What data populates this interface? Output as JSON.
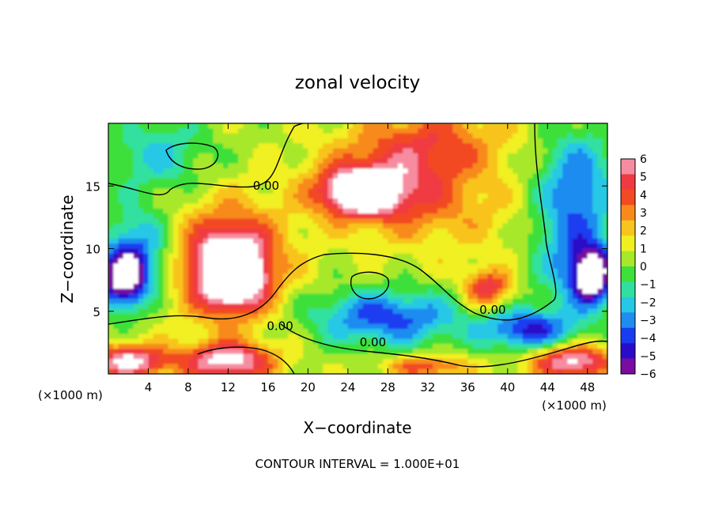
{
  "chart_data": {
    "type": "heatmap",
    "title": "zonal velocity",
    "xlabel": "X−coordinate",
    "ylabel": "Z−coordinate",
    "x_unit_label_left": "(×1000 m)",
    "x_unit_label_right": "(×1000 m)",
    "footer": "CONTOUR INTERVAL = 1.000E+01",
    "xlim": [
      0,
      50
    ],
    "ylim": [
      0,
      20
    ],
    "xticks": [
      4,
      8,
      12,
      16,
      20,
      24,
      28,
      32,
      36,
      40,
      44,
      48
    ],
    "yticks": [
      5,
      10,
      15
    ],
    "colorbar": {
      "min": -6,
      "max": 6,
      "ticks": [
        6,
        5,
        4,
        3,
        2,
        1,
        0,
        -1,
        -2,
        -3,
        -4,
        -5,
        -6
      ],
      "colors": [
        "#7a0ca0",
        "#2a0cc8",
        "#1a3cf0",
        "#1e8cf0",
        "#25c8e6",
        "#30e0a0",
        "#3ee03a",
        "#a8e82a",
        "#f0f020",
        "#f8c41e",
        "#f88a1c",
        "#f24a22",
        "#f03a42",
        "#f68ca0"
      ]
    },
    "contour_labels": [
      {
        "text": "0.00",
        "x": 15.8,
        "y": 14.7
      },
      {
        "text": "0.00",
        "x": 17.2,
        "y": 3.5
      },
      {
        "text": "0.00",
        "x": 26.5,
        "y": 2.2
      },
      {
        "text": "0.00",
        "x": 38.5,
        "y": 4.8
      }
    ],
    "features": [
      {
        "x": 12.5,
        "y": 8.0,
        "value": 7.0,
        "rx": 3.0,
        "ry": 2.6
      },
      {
        "x": 12.0,
        "y": 9.0,
        "value": 5.0,
        "rx": 5.5,
        "ry": 4.4
      },
      {
        "x": 25.0,
        "y": 14.5,
        "value": 5.5,
        "rx": 3.6,
        "ry": 1.7
      },
      {
        "x": 27.0,
        "y": 14.8,
        "value": 4.0,
        "rx": 6.5,
        "ry": 2.8
      },
      {
        "x": 32.0,
        "y": 18.5,
        "value": 3.2,
        "rx": 7.5,
        "ry": 2.8
      },
      {
        "x": 38.0,
        "y": 6.8,
        "value": 4.5,
        "rx": 2.3,
        "ry": 1.5
      },
      {
        "x": 34.0,
        "y": 13.0,
        "value": 1.5,
        "rx": 8.0,
        "ry": 4.0
      },
      {
        "x": 28.0,
        "y": 4.5,
        "value": -4.5,
        "rx": 7.5,
        "ry": 2.2
      },
      {
        "x": 42.0,
        "y": 3.5,
        "value": -4.8,
        "rx": 4.5,
        "ry": 1.6
      },
      {
        "x": 46.5,
        "y": 10.0,
        "value": -3.5,
        "rx": 4.0,
        "ry": 5.0
      },
      {
        "x": 3.0,
        "y": 10.0,
        "value": -3.5,
        "rx": 3.5,
        "ry": 3.2
      },
      {
        "x": 1.5,
        "y": 7.5,
        "value": -7.0,
        "rx": 2.5,
        "ry": 2.3
      },
      {
        "x": 48.5,
        "y": 7.8,
        "value": -7.0,
        "rx": 2.0,
        "ry": 2.2
      },
      {
        "x": 12.0,
        "y": 1.0,
        "value": 6.0,
        "rx": 4.5,
        "ry": 1.5
      },
      {
        "x": 2.0,
        "y": 1.0,
        "value": 6.0,
        "rx": 4.0,
        "ry": 1.3
      },
      {
        "x": 46.5,
        "y": 1.0,
        "value": 6.0,
        "rx": 4.0,
        "ry": 1.3
      },
      {
        "x": 32.0,
        "y": 0.6,
        "value": 3.5,
        "rx": 4.0,
        "ry": 0.9
      },
      {
        "x": 5.0,
        "y": 17.5,
        "value": -2.5,
        "rx": 5.0,
        "ry": 3.0
      },
      {
        "x": 47.0,
        "y": 16.0,
        "value": -3.0,
        "rx": 4.0,
        "ry": 4.0
      }
    ],
    "grid": false,
    "legend": "right"
  }
}
